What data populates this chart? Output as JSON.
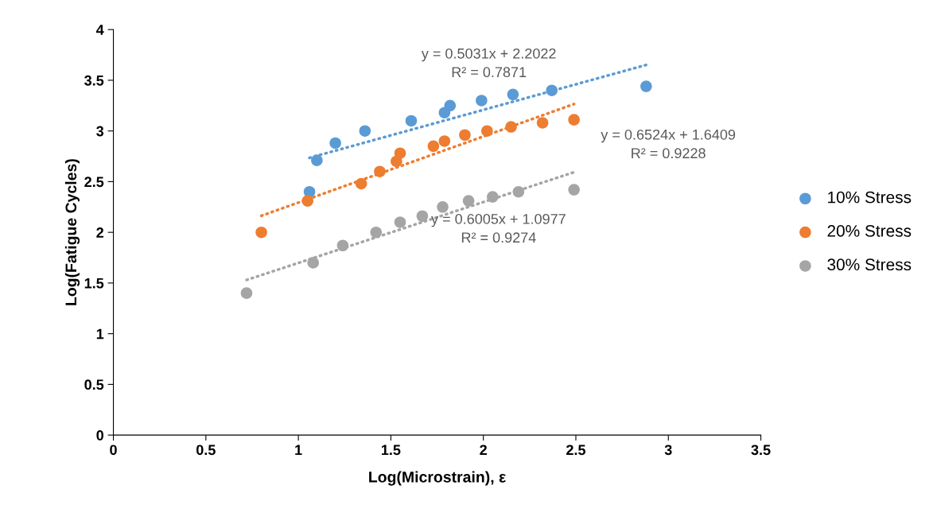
{
  "chart_data": {
    "type": "scatter",
    "xlabel": "Log(Microstrain), ε",
    "ylabel": "Log(Fatigue Cycles)",
    "xlim": [
      0,
      3.5
    ],
    "xticks": [
      0,
      0.5,
      1,
      1.5,
      2,
      2.5,
      3,
      3.5
    ],
    "ylim": [
      0,
      4
    ],
    "yticks": [
      0,
      0.5,
      1,
      1.5,
      2,
      2.5,
      3,
      3.5,
      4
    ],
    "grid": false,
    "legend": "right",
    "marker": "circle",
    "series": [
      {
        "name": "10% Stress",
        "color": "#5b9bd5",
        "x": [
          1.06,
          1.1,
          1.2,
          1.36,
          1.61,
          1.79,
          1.82,
          1.99,
          2.16,
          2.37,
          2.88
        ],
        "values": [
          2.4,
          2.71,
          2.88,
          3.0,
          3.1,
          3.18,
          3.25,
          3.3,
          3.36,
          3.4,
          3.44
        ]
      },
      {
        "name": "20% Stress",
        "color": "#ed7d31",
        "x": [
          0.8,
          1.05,
          1.34,
          1.44,
          1.53,
          1.55,
          1.73,
          1.79,
          1.9,
          2.02,
          2.15,
          2.32,
          2.49
        ],
        "values": [
          2.0,
          2.31,
          2.48,
          2.6,
          2.7,
          2.78,
          2.85,
          2.9,
          2.96,
          3.0,
          3.04,
          3.08,
          3.11
        ]
      },
      {
        "name": "30% Stress",
        "color": "#a5a5a5",
        "x": [
          0.72,
          1.08,
          1.24,
          1.42,
          1.55,
          1.67,
          1.78,
          1.92,
          2.05,
          2.19,
          2.49
        ],
        "values": [
          1.4,
          1.7,
          1.87,
          2.0,
          2.1,
          2.16,
          2.25,
          2.31,
          2.35,
          2.4,
          2.42
        ]
      },
      {
        "type": "line",
        "color": "#5b9bd5",
        "line_style": "dotted",
        "marker": "none",
        "x": [
          1.06,
          2.88
        ],
        "values": [
          2.735,
          3.651
        ]
      },
      {
        "type": "line",
        "color": "#ed7d31",
        "line_style": "dotted",
        "marker": "none",
        "x": [
          0.8,
          2.49
        ],
        "values": [
          2.163,
          3.265
        ]
      },
      {
        "type": "line",
        "color": "#a5a5a5",
        "line_style": "dotted",
        "marker": "none",
        "x": [
          0.72,
          2.49
        ],
        "values": [
          1.53,
          2.593
        ]
      }
    ],
    "annotations": [
      "y = 0.5031x + 2.2022\nR² = 0.7871",
      "y = 0.6524x + 1.6409\nR² = 0.9228",
      "y = 0.6005x + 1.0977\nR² = 0.9274"
    ]
  }
}
